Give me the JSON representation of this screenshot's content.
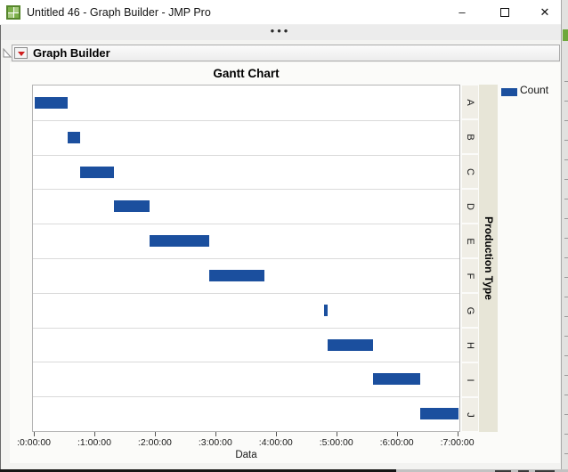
{
  "window": {
    "title": "Untitled 46 - Graph Builder - JMP Pro",
    "controls": {
      "minimize_glyph": "–",
      "close_glyph": "✕"
    }
  },
  "toolbar": {
    "handle_dots": "•••"
  },
  "outline": {
    "title": "Graph Builder"
  },
  "chart_data": {
    "type": "bar",
    "subtype": "gantt",
    "title": "Gantt Chart",
    "xlabel": "Data",
    "right_axis_label": "Production Type",
    "legend": {
      "label": "Count",
      "color": "#1B4F9E"
    },
    "bar_color": "#1B4F9E",
    "grid": "horizontal-row-separators",
    "categories": [
      "A",
      "B",
      "C",
      "D",
      "E",
      "F",
      "G",
      "H",
      "I",
      "J"
    ],
    "bars": [
      {
        "category": "A",
        "start_hours": 0.0,
        "end_hours": 0.54
      },
      {
        "category": "B",
        "start_hours": 0.54,
        "end_hours": 0.75
      },
      {
        "category": "C",
        "start_hours": 0.75,
        "end_hours": 1.31
      },
      {
        "category": "D",
        "start_hours": 1.31,
        "end_hours": 1.9
      },
      {
        "category": "E",
        "start_hours": 1.9,
        "end_hours": 2.9
      },
      {
        "category": "F",
        "start_hours": 2.9,
        "end_hours": 3.81
      },
      {
        "category": "G",
        "start_hours": 4.81,
        "end_hours": 4.86
      },
      {
        "category": "H",
        "start_hours": 4.86,
        "end_hours": 5.62
      },
      {
        "category": "I",
        "start_hours": 5.62,
        "end_hours": 6.4
      },
      {
        "category": "J",
        "start_hours": 6.4,
        "end_hours": 7.04
      }
    ],
    "x_ticks": [
      {
        "hours": 0,
        "label": ":0:00:00"
      },
      {
        "hours": 1,
        "label": ":1:00:00"
      },
      {
        "hours": 2,
        "label": ":2:00:00"
      },
      {
        "hours": 3,
        "label": ":3:00:00"
      },
      {
        "hours": 4,
        "label": ":4:00:00"
      },
      {
        "hours": 5,
        "label": ":5:00:00"
      },
      {
        "hours": 6,
        "label": ":6:00:00"
      },
      {
        "hours": 7,
        "label": ":7:00:00"
      }
    ],
    "xlim_hours": [
      -0.03,
      7.05
    ]
  }
}
